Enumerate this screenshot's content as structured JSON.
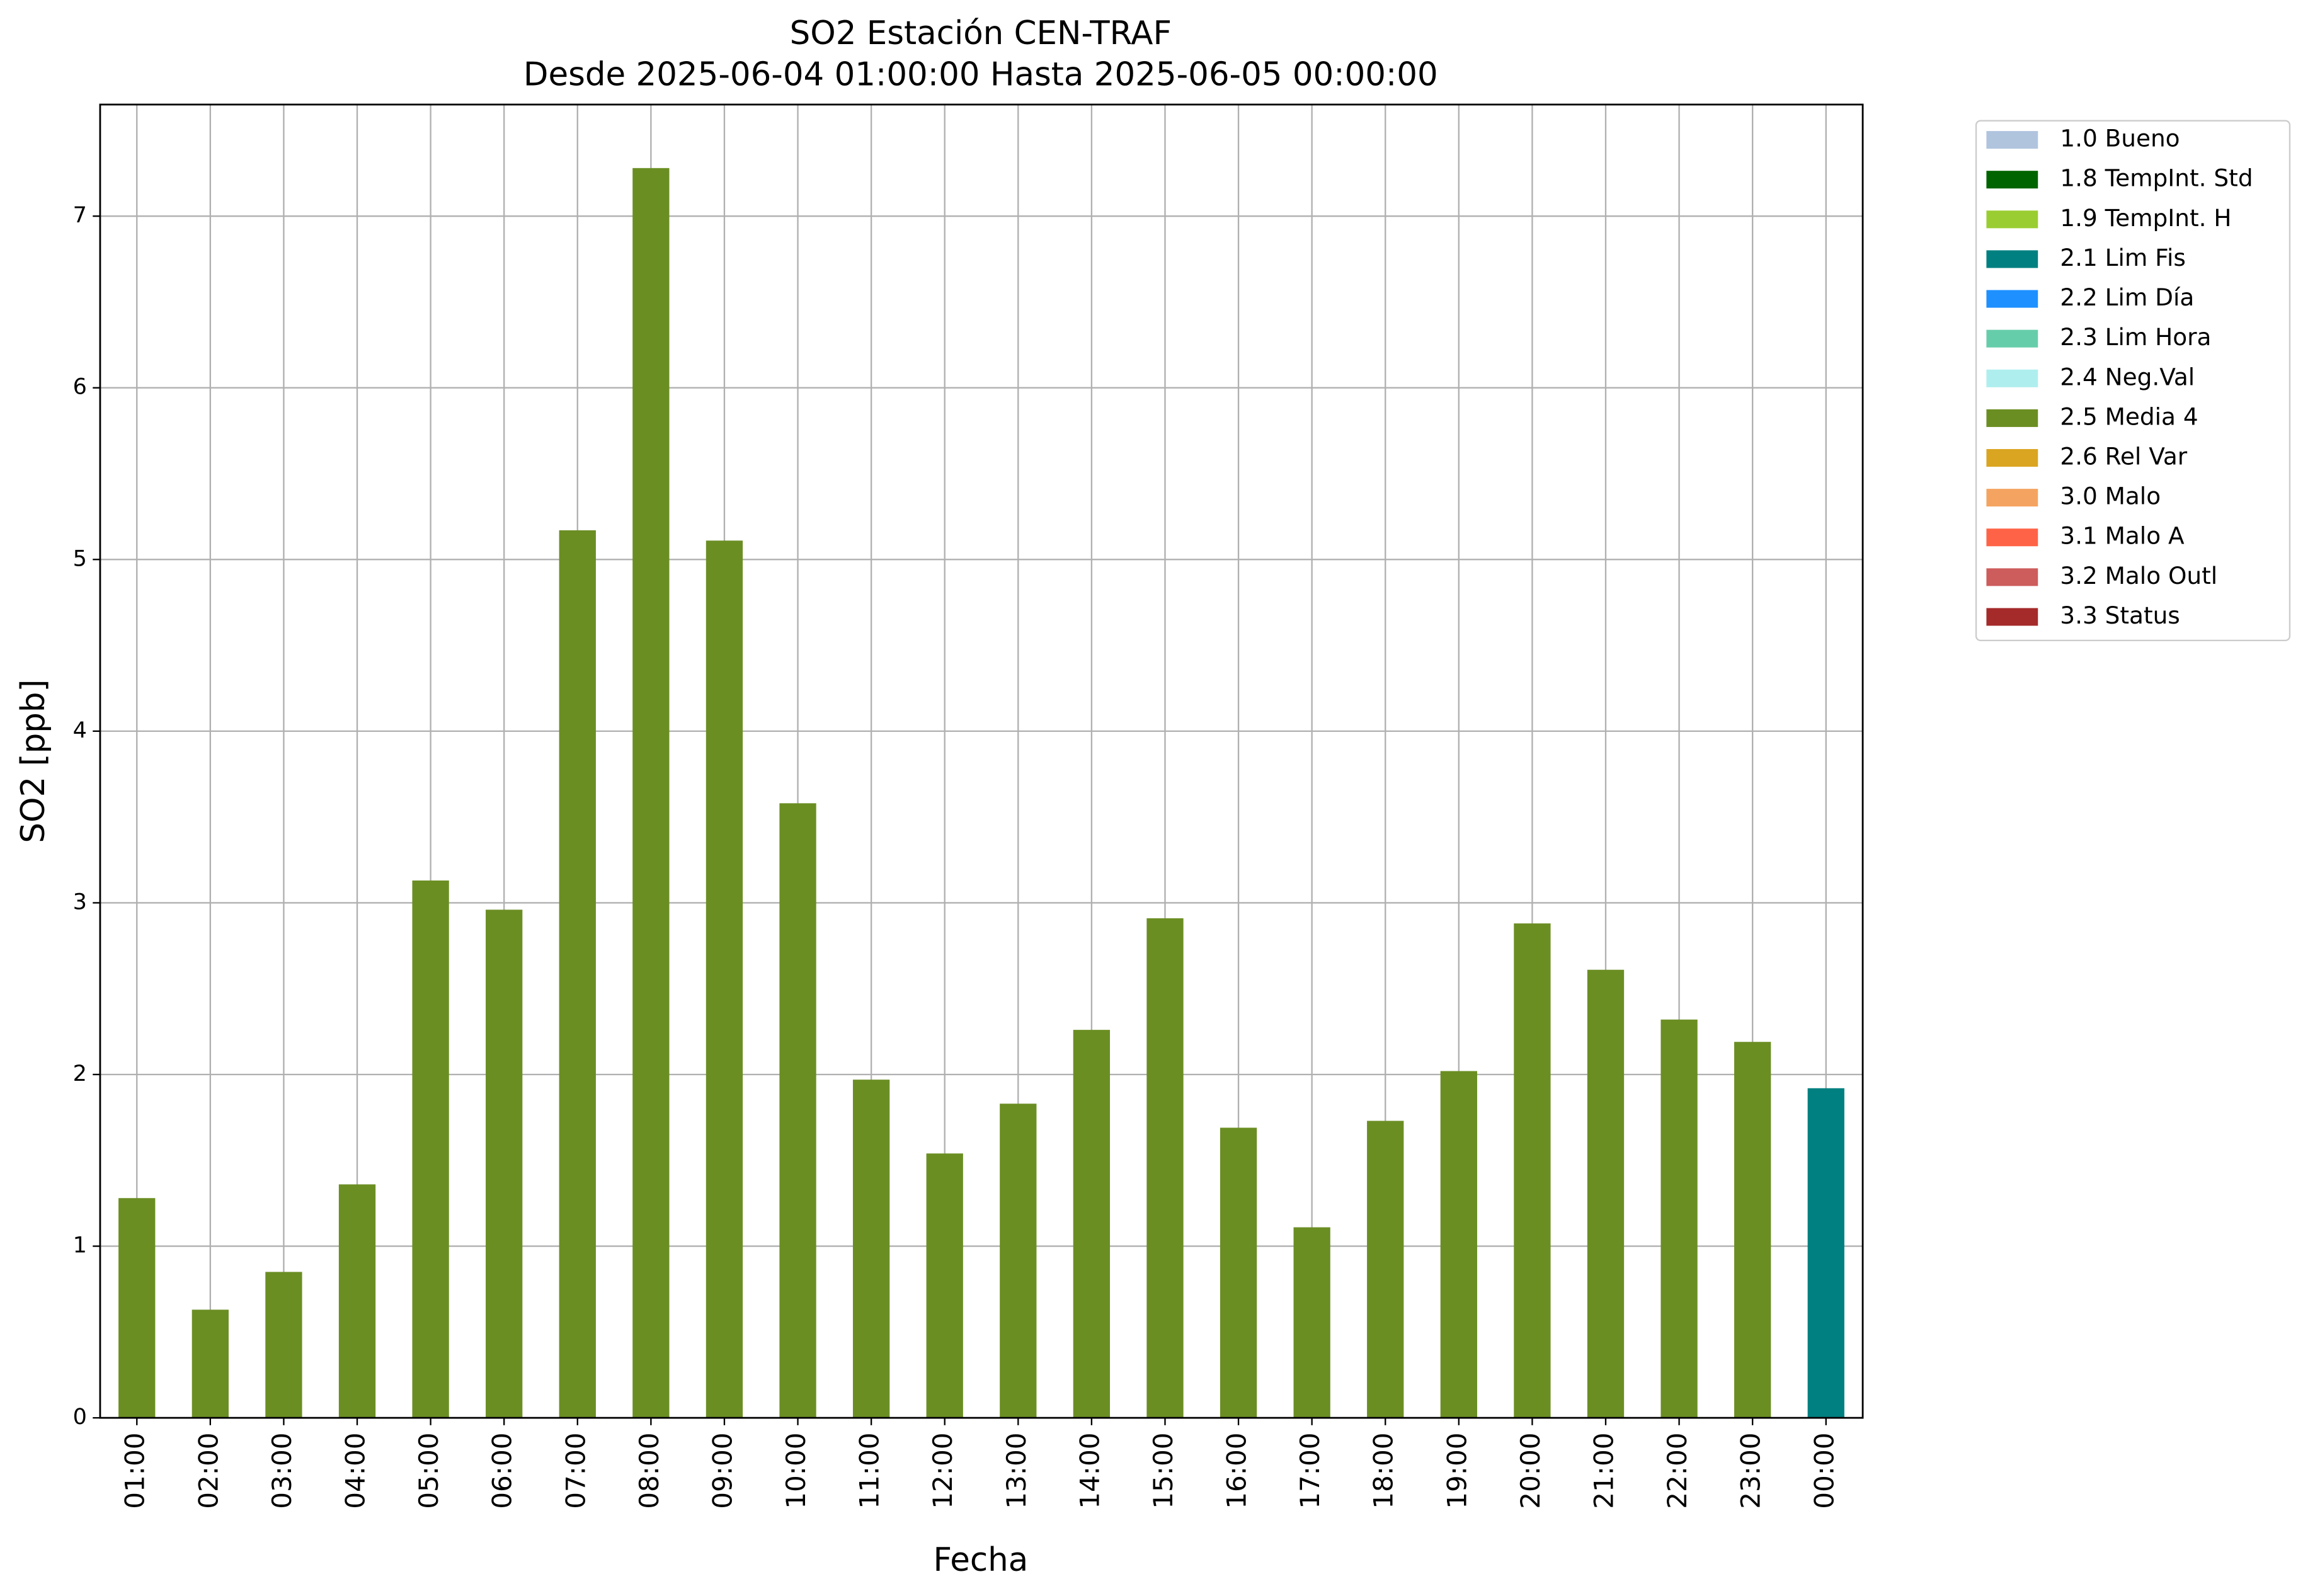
{
  "chart_data": {
    "type": "bar",
    "title": "SO2 Estación CEN-TRAF",
    "subtitle": "Desde 2025-06-04 01:00:00 Hasta 2025-06-05 00:00:00",
    "x_label": "Fecha",
    "y_label": "SO2 [ppb]",
    "categories": [
      "01:00",
      "02:00",
      "03:00",
      "04:00",
      "05:00",
      "06:00",
      "07:00",
      "08:00",
      "09:00",
      "10:00",
      "11:00",
      "12:00",
      "13:00",
      "14:00",
      "15:00",
      "16:00",
      "17:00",
      "18:00",
      "19:00",
      "20:00",
      "21:00",
      "22:00",
      "23:00",
      "00:00"
    ],
    "ylim": [
      0,
      7.65
    ],
    "yticks": [
      0,
      1,
      2,
      3,
      4,
      5,
      6,
      7
    ],
    "grid": true,
    "legend": "outside-upper-right",
    "series": [
      {
        "name": "1.0 Bueno",
        "color": "#b0c4de",
        "values": [
          null,
          null,
          null,
          null,
          null,
          null,
          null,
          null,
          null,
          null,
          null,
          null,
          null,
          null,
          null,
          null,
          null,
          null,
          null,
          null,
          null,
          null,
          null,
          null
        ]
      },
      {
        "name": "1.8 TempInt. Std",
        "color": "#006400",
        "values": [
          null,
          null,
          null,
          null,
          null,
          null,
          null,
          null,
          null,
          null,
          null,
          null,
          null,
          null,
          null,
          null,
          null,
          null,
          null,
          null,
          null,
          null,
          null,
          null
        ]
      },
      {
        "name": "1.9 TempInt. H",
        "color": "#9acd32",
        "values": [
          null,
          null,
          null,
          null,
          null,
          null,
          null,
          null,
          null,
          null,
          null,
          null,
          null,
          null,
          null,
          null,
          null,
          null,
          null,
          null,
          null,
          null,
          null,
          null
        ]
      },
      {
        "name": "2.1 Lim Fis",
        "color": "#008080",
        "values": [
          null,
          null,
          null,
          null,
          null,
          null,
          null,
          null,
          null,
          null,
          null,
          null,
          null,
          null,
          null,
          null,
          null,
          null,
          null,
          null,
          null,
          null,
          null,
          1.92
        ]
      },
      {
        "name": "2.2 Lim Día",
        "color": "#1e90ff",
        "values": [
          null,
          null,
          null,
          null,
          null,
          null,
          null,
          null,
          null,
          null,
          null,
          null,
          null,
          null,
          null,
          null,
          null,
          null,
          null,
          null,
          null,
          null,
          null,
          null
        ]
      },
      {
        "name": "2.3 Lim Hora",
        "color": "#66cdaa",
        "values": [
          null,
          null,
          null,
          null,
          null,
          null,
          null,
          null,
          null,
          null,
          null,
          null,
          null,
          null,
          null,
          null,
          null,
          null,
          null,
          null,
          null,
          null,
          null,
          null
        ]
      },
      {
        "name": "2.4 Neg.Val",
        "color": "#afeeee",
        "values": [
          null,
          null,
          null,
          null,
          null,
          null,
          null,
          null,
          null,
          null,
          null,
          null,
          null,
          null,
          null,
          null,
          null,
          null,
          null,
          null,
          null,
          null,
          null,
          null
        ]
      },
      {
        "name": "2.5 Media 4",
        "color": "#6b8e23",
        "values": [
          1.28,
          0.63,
          0.85,
          1.36,
          3.13,
          2.96,
          5.17,
          7.28,
          5.11,
          3.58,
          1.97,
          1.54,
          1.83,
          2.26,
          2.91,
          1.69,
          1.11,
          1.73,
          2.02,
          2.88,
          2.61,
          2.32,
          2.19,
          null
        ]
      },
      {
        "name": "2.6 Rel Var",
        "color": "#daa520",
        "values": [
          null,
          null,
          null,
          null,
          null,
          null,
          null,
          null,
          null,
          null,
          null,
          null,
          null,
          null,
          null,
          null,
          null,
          null,
          null,
          null,
          null,
          null,
          null,
          null
        ]
      },
      {
        "name": "3.0 Malo",
        "color": "#f4a460",
        "values": [
          null,
          null,
          null,
          null,
          null,
          null,
          null,
          null,
          null,
          null,
          null,
          null,
          null,
          null,
          null,
          null,
          null,
          null,
          null,
          null,
          null,
          null,
          null,
          null
        ]
      },
      {
        "name": "3.1 Malo A",
        "color": "#ff6347",
        "values": [
          null,
          null,
          null,
          null,
          null,
          null,
          null,
          null,
          null,
          null,
          null,
          null,
          null,
          null,
          null,
          null,
          null,
          null,
          null,
          null,
          null,
          null,
          null,
          null
        ]
      },
      {
        "name": "3.2 Malo Outl",
        "color": "#cd5c5c",
        "values": [
          null,
          null,
          null,
          null,
          null,
          null,
          null,
          null,
          null,
          null,
          null,
          null,
          null,
          null,
          null,
          null,
          null,
          null,
          null,
          null,
          null,
          null,
          null,
          null
        ]
      },
      {
        "name": "3.3 Status",
        "color": "#a52a2a",
        "values": [
          null,
          null,
          null,
          null,
          null,
          null,
          null,
          null,
          null,
          null,
          null,
          null,
          null,
          null,
          null,
          null,
          null,
          null,
          null,
          null,
          null,
          null,
          null,
          null
        ]
      }
    ]
  }
}
